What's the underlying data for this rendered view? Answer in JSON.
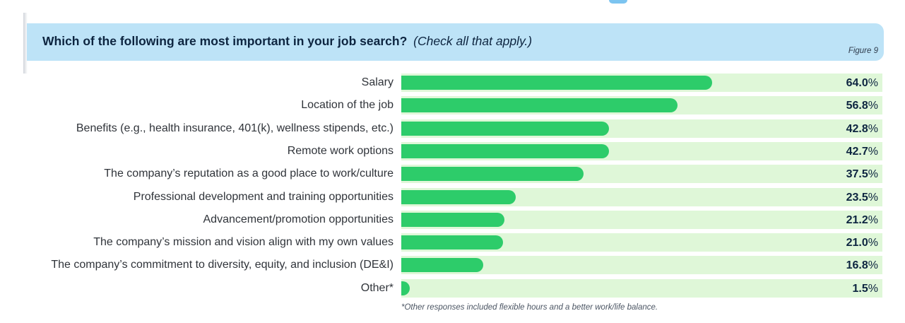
{
  "header": {
    "question": "Which of the following are most important in your job search?",
    "note": "(Check all that apply.)",
    "figure_label": "Figure 9"
  },
  "colors": {
    "header_bg": "#bde3f7",
    "bar": "#2dcc6a",
    "track": "#dff7d8",
    "title_text": "#0d2540"
  },
  "chart_data": {
    "type": "bar",
    "orientation": "horizontal",
    "unit": "%",
    "xlim": [
      0,
      100
    ],
    "grid": false,
    "categories": [
      "Salary",
      "Location of the job",
      "Benefits (e.g., health insurance, 401(k), wellness stipends, etc.)",
      "Remote work options",
      "The company’s reputation as a good place to work/culture",
      "Professional development and training opportunities",
      "Advancement/promotion opportunities",
      "The company’s mission and vision align with my own values",
      "The company’s commitment to diversity, equity, and inclusion (DE&I)",
      "Other*"
    ],
    "values": [
      64.0,
      56.8,
      42.8,
      42.7,
      37.5,
      23.5,
      21.2,
      21.0,
      16.8,
      1.5
    ],
    "value_labels": [
      "64.0",
      "56.8",
      "42.8",
      "42.7",
      "37.5",
      "23.5",
      "21.2",
      "21.0",
      "16.8",
      "1.5"
    ]
  },
  "footnote": "*Other responses included flexible hours and a better work/life balance."
}
